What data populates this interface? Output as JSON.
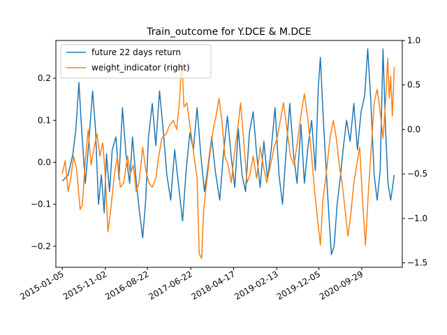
{
  "chart_data": {
    "type": "line",
    "title": "Train_outcome for Y.DCE & M.DCE",
    "xlabel": "",
    "ylabel": "",
    "ylim_left": [
      -0.25,
      0.29
    ],
    "ylim_right": [
      -1.55,
      1.0
    ],
    "xlim": [
      "2014-11-21",
      "2021-07-10"
    ],
    "grid": false,
    "legend_position": "upper-left",
    "x_ticks": [
      "2015-01-05",
      "2015-11-02",
      "2016-08-22",
      "2017-06-22",
      "2018-04-17",
      "2019-02-13",
      "2019-12-05",
      "2020-09-29"
    ],
    "y_ticks_left": [
      "−0.2",
      "−0.1",
      "0.0",
      "0.1",
      "0.2"
    ],
    "y_ticks_right": [
      "−1.5",
      "−1.0",
      "−0.5",
      "0.0",
      "0.5",
      "1.0"
    ],
    "series": [
      {
        "name": "future 22 days return",
        "axis": "left",
        "color": "#1f77b4",
        "points": [
          [
            "2015-01-05",
            -0.045
          ],
          [
            "2015-02-15",
            -0.03
          ],
          [
            "2015-03-20",
            0.02
          ],
          [
            "2015-04-10",
            0.08
          ],
          [
            "2015-05-01",
            0.19
          ],
          [
            "2015-05-20",
            0.08
          ],
          [
            "2015-06-15",
            -0.05
          ],
          [
            "2015-07-10",
            0.05
          ],
          [
            "2015-08-05",
            0.17
          ],
          [
            "2015-08-25",
            0.08
          ],
          [
            "2015-09-15",
            -0.1
          ],
          [
            "2015-10-05",
            -0.03
          ],
          [
            "2015-10-25",
            -0.12
          ],
          [
            "2015-11-10",
            0.02
          ],
          [
            "2015-12-01",
            -0.07
          ],
          [
            "2015-12-20",
            0.03
          ],
          [
            "2016-01-15",
            0.06
          ],
          [
            "2016-02-05",
            -0.04
          ],
          [
            "2016-03-01",
            0.13
          ],
          [
            "2016-03-25",
            0.02
          ],
          [
            "2016-04-20",
            -0.05
          ],
          [
            "2016-05-10",
            0.06
          ],
          [
            "2016-06-01",
            -0.03
          ],
          [
            "2016-06-25",
            -0.11
          ],
          [
            "2016-07-20",
            -0.18
          ],
          [
            "2016-08-10",
            -0.09
          ],
          [
            "2016-08-30",
            0.06
          ],
          [
            "2016-09-25",
            0.14
          ],
          [
            "2016-10-20",
            0.04
          ],
          [
            "2016-11-15",
            0.17
          ],
          [
            "2016-12-10",
            0.08
          ],
          [
            "2017-01-05",
            -0.03
          ],
          [
            "2017-02-01",
            -0.09
          ],
          [
            "2017-03-01",
            0.03
          ],
          [
            "2017-03-30",
            -0.06
          ],
          [
            "2017-04-25",
            -0.14
          ],
          [
            "2017-05-20",
            -0.02
          ],
          [
            "2017-06-15",
            0.07
          ],
          [
            "2017-07-10",
            0.03
          ],
          [
            "2017-08-05",
            0.13
          ],
          [
            "2017-08-30",
            0.02
          ],
          [
            "2017-09-25",
            -0.07
          ],
          [
            "2017-10-20",
            -0.01
          ],
          [
            "2017-11-15",
            0.06
          ],
          [
            "2017-12-10",
            -0.02
          ],
          [
            "2018-01-10",
            -0.09
          ],
          [
            "2018-02-05",
            0.02
          ],
          [
            "2018-03-05",
            0.11
          ],
          [
            "2018-04-01",
            0.01
          ],
          [
            "2018-04-25",
            -0.06
          ],
          [
            "2018-05-20",
            0.08
          ],
          [
            "2018-06-15",
            -0.03
          ],
          [
            "2018-07-10",
            -0.07
          ],
          [
            "2018-08-05",
            0.07
          ],
          [
            "2018-09-01",
            0.12
          ],
          [
            "2018-09-25",
            0.02
          ],
          [
            "2018-10-20",
            -0.06
          ],
          [
            "2018-11-15",
            0.05
          ],
          [
            "2018-12-10",
            -0.04
          ],
          [
            "2019-01-05",
            0.03
          ],
          [
            "2019-02-01",
            0.13
          ],
          [
            "2019-03-01",
            -0.03
          ],
          [
            "2019-03-25",
            -0.1
          ],
          [
            "2019-04-20",
            0.03
          ],
          [
            "2019-05-15",
            0.14
          ],
          [
            "2019-06-10",
            0.02
          ],
          [
            "2019-07-05",
            -0.05
          ],
          [
            "2019-08-01",
            0.09
          ],
          [
            "2019-08-25",
            -0.05
          ],
          [
            "2019-09-20",
            0.04
          ],
          [
            "2019-10-15",
            0.1
          ],
          [
            "2019-11-10",
            -0.02
          ],
          [
            "2019-12-01",
            0.18
          ],
          [
            "2019-12-15",
            0.25
          ],
          [
            "2020-01-05",
            0.1
          ],
          [
            "2020-01-25",
            -0.02
          ],
          [
            "2020-02-15",
            -0.14
          ],
          [
            "2020-03-01",
            -0.22
          ],
          [
            "2020-03-20",
            -0.2
          ],
          [
            "2020-04-10",
            -0.1
          ],
          [
            "2020-05-01",
            -0.04
          ],
          [
            "2020-05-25",
            0.04
          ],
          [
            "2020-06-15",
            0.1
          ],
          [
            "2020-07-10",
            0.05
          ],
          [
            "2020-08-05",
            0.14
          ],
          [
            "2020-08-30",
            0.03
          ],
          [
            "2020-09-25",
            0.12
          ],
          [
            "2020-10-20",
            0.16
          ],
          [
            "2020-11-10",
            0.27
          ],
          [
            "2020-12-01",
            0.15
          ],
          [
            "2020-12-25",
            -0.03
          ],
          [
            "2021-01-15",
            -0.09
          ],
          [
            "2021-02-05",
            -0.02
          ],
          [
            "2021-02-25",
            0.27
          ],
          [
            "2021-03-15",
            0.08
          ],
          [
            "2021-04-01",
            -0.05
          ],
          [
            "2021-04-20",
            -0.09
          ],
          [
            "2021-05-15",
            -0.03
          ]
        ]
      },
      {
        "name": "weight_indicator (right)",
        "axis": "right",
        "color": "#ff7f0e",
        "points": [
          [
            "2015-01-05",
            -0.5
          ],
          [
            "2015-01-25",
            -0.35
          ],
          [
            "2015-02-15",
            -0.7
          ],
          [
            "2015-03-05",
            -0.55
          ],
          [
            "2015-03-25",
            -0.3
          ],
          [
            "2015-04-15",
            -0.45
          ],
          [
            "2015-05-10",
            -0.9
          ],
          [
            "2015-05-25",
            -0.85
          ],
          [
            "2015-06-15",
            -0.35
          ],
          [
            "2015-07-05",
            0.0
          ],
          [
            "2015-07-25",
            -0.4
          ],
          [
            "2015-08-15",
            -0.2
          ],
          [
            "2015-09-05",
            -0.05
          ],
          [
            "2015-09-25",
            -0.3
          ],
          [
            "2015-10-15",
            -0.15
          ],
          [
            "2015-11-01",
            -0.5
          ],
          [
            "2015-11-20",
            -1.15
          ],
          [
            "2015-12-10",
            -0.9
          ],
          [
            "2016-01-05",
            -0.5
          ],
          [
            "2016-01-25",
            -0.3
          ],
          [
            "2016-02-15",
            -0.65
          ],
          [
            "2016-03-10",
            -0.6
          ],
          [
            "2016-04-05",
            -0.3
          ],
          [
            "2016-04-25",
            -0.5
          ],
          [
            "2016-05-15",
            -0.4
          ],
          [
            "2016-06-05",
            -0.7
          ],
          [
            "2016-06-25",
            -0.6
          ],
          [
            "2016-07-20",
            -0.2
          ],
          [
            "2016-08-10",
            -0.45
          ],
          [
            "2016-09-01",
            -0.6
          ],
          [
            "2016-09-25",
            -0.65
          ],
          [
            "2016-10-20",
            -0.55
          ],
          [
            "2016-11-10",
            -0.3
          ],
          [
            "2016-12-01",
            -0.1
          ],
          [
            "2017-01-01",
            -0.05
          ],
          [
            "2017-01-25",
            0.05
          ],
          [
            "2017-02-20",
            0.1
          ],
          [
            "2017-03-15",
            0.0
          ],
          [
            "2017-04-05",
            0.35
          ],
          [
            "2017-04-20",
            0.8
          ],
          [
            "2017-05-05",
            0.25
          ],
          [
            "2017-05-25",
            0.3
          ],
          [
            "2017-06-20",
            0.0
          ],
          [
            "2017-07-15",
            -0.3
          ],
          [
            "2017-08-05",
            -0.55
          ],
          [
            "2017-08-20",
            -1.4
          ],
          [
            "2017-09-05",
            -1.45
          ],
          [
            "2017-09-20",
            -0.9
          ],
          [
            "2017-10-10",
            -0.6
          ],
          [
            "2017-11-01",
            -0.3
          ],
          [
            "2017-11-25",
            0.0
          ],
          [
            "2017-12-15",
            0.15
          ],
          [
            "2018-01-05",
            0.35
          ],
          [
            "2018-01-25",
            0.1
          ],
          [
            "2018-02-15",
            -0.3
          ],
          [
            "2018-03-10",
            -0.4
          ],
          [
            "2018-04-01",
            -0.6
          ],
          [
            "2018-04-20",
            -0.3
          ],
          [
            "2018-05-15",
            0.0
          ],
          [
            "2018-06-05",
            0.3
          ],
          [
            "2018-06-25",
            -0.1
          ],
          [
            "2018-07-20",
            -0.6
          ],
          [
            "2018-08-10",
            -0.5
          ],
          [
            "2018-09-01",
            -0.3
          ],
          [
            "2018-09-25",
            -0.55
          ],
          [
            "2018-10-20",
            -0.2
          ],
          [
            "2018-11-10",
            -0.4
          ],
          [
            "2018-12-05",
            -0.6
          ],
          [
            "2019-01-01",
            -0.4
          ],
          [
            "2019-01-25",
            -0.2
          ],
          [
            "2019-02-15",
            -0.1
          ],
          [
            "2019-03-10",
            0.1
          ],
          [
            "2019-04-01",
            0.3
          ],
          [
            "2019-04-25",
            0.0
          ],
          [
            "2019-05-20",
            -0.3
          ],
          [
            "2019-06-15",
            -0.4
          ],
          [
            "2019-07-10",
            -0.1
          ],
          [
            "2019-08-05",
            0.2
          ],
          [
            "2019-08-25",
            0.4
          ],
          [
            "2019-09-20",
            0.1
          ],
          [
            "2019-10-15",
            -0.3
          ],
          [
            "2019-11-05",
            -0.7
          ],
          [
            "2019-11-25",
            -1.0
          ],
          [
            "2019-12-15",
            -1.3
          ],
          [
            "2020-01-01",
            -0.8
          ],
          [
            "2020-01-25",
            -0.5
          ],
          [
            "2020-02-20",
            -0.1
          ],
          [
            "2020-03-15",
            0.1
          ],
          [
            "2020-04-05",
            -0.1
          ],
          [
            "2020-04-25",
            -0.4
          ],
          [
            "2020-05-15",
            -0.6
          ],
          [
            "2020-06-05",
            -0.9
          ],
          [
            "2020-06-25",
            -1.2
          ],
          [
            "2020-07-15",
            -0.95
          ],
          [
            "2020-08-05",
            -0.6
          ],
          [
            "2020-08-25",
            -0.4
          ],
          [
            "2020-09-15",
            -0.2
          ],
          [
            "2020-10-05",
            -0.8
          ],
          [
            "2020-10-25",
            -1.3
          ],
          [
            "2020-11-15",
            -0.7
          ],
          [
            "2020-12-05",
            -0.2
          ],
          [
            "2020-12-25",
            0.3
          ],
          [
            "2021-01-15",
            0.45
          ],
          [
            "2021-02-05",
            0.2
          ],
          [
            "2021-02-25",
            -0.1
          ],
          [
            "2021-03-15",
            0.3
          ],
          [
            "2021-03-30",
            0.8
          ],
          [
            "2021-04-10",
            0.35
          ],
          [
            "2021-04-20",
            0.6
          ],
          [
            "2021-05-01",
            0.15
          ],
          [
            "2021-05-15",
            0.7
          ]
        ]
      }
    ]
  }
}
